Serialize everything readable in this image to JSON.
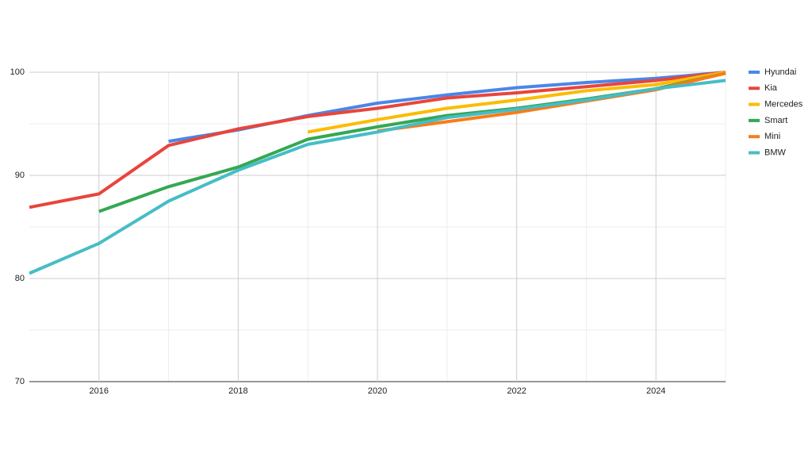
{
  "chart_data": {
    "type": "line",
    "x": [
      2015,
      2016,
      2017,
      2018,
      2019,
      2020,
      2021,
      2022,
      2023,
      2024,
      2025
    ],
    "series": [
      {
        "name": "Hyundai",
        "color": "#4a86e8",
        "values": [
          null,
          null,
          93.3,
          94.4,
          95.8,
          97.0,
          97.8,
          98.5,
          99.0,
          99.4,
          100
        ]
      },
      {
        "name": "Kia",
        "color": "#e8453c",
        "values": [
          86.9,
          88.2,
          92.9,
          94.5,
          95.7,
          96.5,
          97.5,
          98.0,
          98.6,
          99.2,
          100
        ]
      },
      {
        "name": "Mercedes",
        "color": "#fbbc04",
        "values": [
          null,
          null,
          null,
          null,
          94.2,
          95.4,
          96.5,
          97.3,
          98.2,
          98.8,
          100
        ]
      },
      {
        "name": "Smart",
        "color": "#34a853",
        "values": [
          null,
          86.5,
          88.9,
          90.8,
          93.5,
          94.7,
          95.8,
          96.5,
          97.4,
          98.4,
          99.9
        ]
      },
      {
        "name": "Mini",
        "color": "#fa7b17",
        "values": [
          null,
          null,
          null,
          null,
          null,
          94.3,
          95.2,
          96.1,
          97.2,
          98.3,
          99.9
        ]
      },
      {
        "name": "BMW",
        "color": "#46bdc6",
        "values": [
          80.5,
          83.4,
          87.5,
          90.5,
          93.0,
          94.2,
          95.6,
          96.4,
          97.3,
          98.4,
          99.2
        ]
      }
    ],
    "xlim": [
      2015,
      2025
    ],
    "xticks": [
      2016,
      2018,
      2020,
      2022,
      2024
    ],
    "minor_xticks": [
      2017,
      2019,
      2021,
      2023,
      2025
    ],
    "ylim": [
      70,
      100
    ],
    "yticks": [
      70,
      80,
      90,
      100
    ],
    "minor_yticks": [
      75,
      85,
      95
    ],
    "grid": true,
    "legend": "right"
  }
}
